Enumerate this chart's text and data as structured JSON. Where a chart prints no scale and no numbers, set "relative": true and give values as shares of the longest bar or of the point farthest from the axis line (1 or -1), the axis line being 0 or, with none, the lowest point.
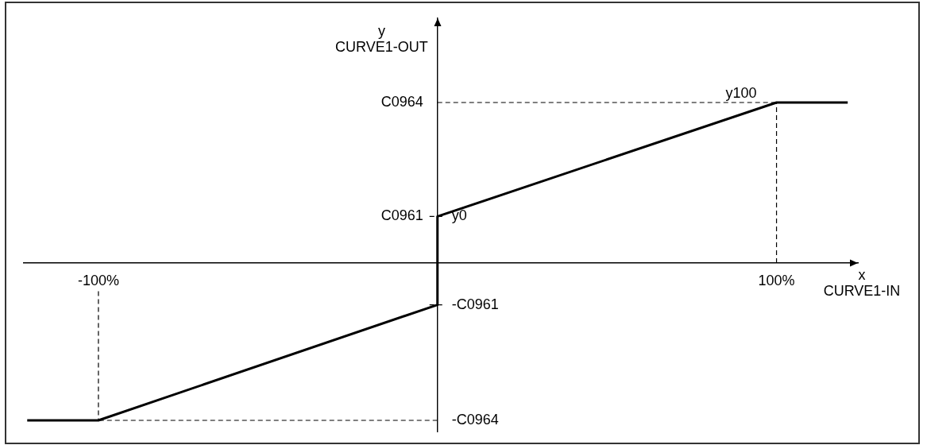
{
  "chart_data": {
    "type": "line",
    "xlabel": "x\nCURVE1-IN",
    "ylabel": "y\nCURVE1-OUT",
    "relative": true,
    "x": [
      -121,
      -100,
      0,
      0,
      100,
      121
    ],
    "values": [
      -0.98,
      -0.98,
      -0.26,
      0.29,
      1,
      1
    ],
    "color": "#000000",
    "xlim": [
      -122,
      124
    ],
    "xticks": [
      {
        "value": -100,
        "label": "-100%"
      },
      {
        "value": 100,
        "label": "100%"
      }
    ],
    "ref_lines": [
      {
        "axis": "y",
        "value": 1,
        "label": "C0964",
        "color": "#000000",
        "line_style": "dashed"
      },
      {
        "axis": "y",
        "value": 0.29,
        "label": "C0961",
        "color": "#000000",
        "line_style": "dashed"
      },
      {
        "axis": "y",
        "value": -0.26,
        "label": "-C0961",
        "color": "#000000",
        "line_style": "dashed"
      },
      {
        "axis": "y",
        "value": -0.98,
        "label": "-C0964",
        "color": "#000000",
        "line_style": "dashed"
      },
      {
        "axis": "x",
        "value": 100,
        "color": "#000000",
        "line_style": "dashed"
      },
      {
        "axis": "x",
        "value": -100,
        "color": "#000000",
        "line_style": "dashed"
      }
    ],
    "annotations": [
      {
        "text": "y100",
        "x": 100,
        "y": 1
      },
      {
        "text": "y0",
        "x": 0,
        "y": 0.29
      }
    ]
  }
}
